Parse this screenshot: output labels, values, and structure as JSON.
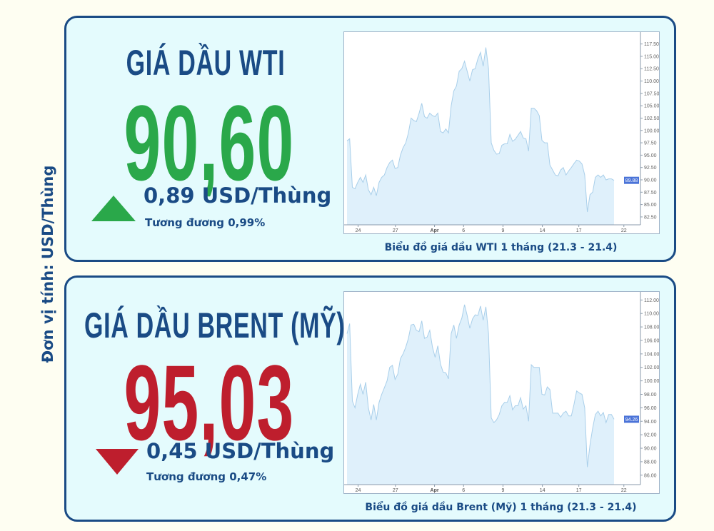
{
  "unit_label": "Đơn vị tính: USD/Thùng",
  "colors": {
    "navy": "#1a4b85",
    "up": "#2aa84a",
    "down": "#be1e2d",
    "panel_bg": "#e4fbfd",
    "page_bg": "#fefef2",
    "area_fill": "#dff0fb",
    "area_line": "#a9cfea",
    "last_badge": "#4a73d8"
  },
  "wti": {
    "title": "GIÁ DẦU WTI",
    "price": "90,60",
    "direction": "up",
    "direction_icon": "triangle-up-icon",
    "change": "0,89 USD/Thùng",
    "percent": "Tương đương 0,99%",
    "caption": "Biểu đồ giá dầu WTI 1 tháng (21.3 - 21.4)"
  },
  "brent": {
    "title": "GIÁ DẦU BRENT (MỸ)",
    "price": "95,03",
    "direction": "down",
    "direction_icon": "triangle-down-icon",
    "change": "0,45 USD/Thùng",
    "percent": "Tương đương 0,47%",
    "caption": "Biểu đồ giá dầu Brent (Mỹ) 1 tháng (21.3 - 21.4)"
  },
  "chart_data": [
    {
      "type": "area",
      "ylim": [
        80.9,
        119.9
      ],
      "y_ticks": [
        "82.50",
        "85.00",
        "87.50",
        "90.00",
        "92.50",
        "95.00",
        "97.50",
        "100.00",
        "102.50",
        "105.00",
        "107.50",
        "110.00",
        "112.50",
        "115.00",
        "117.50"
      ],
      "x_ticks": [
        "24",
        "27",
        "Apr",
        "6",
        "9",
        "14",
        "17",
        "22"
      ],
      "last_value_label": "89.88",
      "grid": false,
      "values": [
        97.9,
        98.3,
        88.5,
        88.2,
        89.5,
        90.5,
        89.5,
        91,
        88,
        87,
        88.5,
        86.8,
        89.5,
        90.5,
        91,
        92.5,
        93.5,
        94,
        92.3,
        92.5,
        95,
        96.5,
        97.5,
        99.5,
        102.5,
        102,
        101.8,
        103.5,
        105.5,
        102.8,
        102.5,
        103.5,
        103,
        102.8,
        103.5,
        99.8,
        99.5,
        100.3,
        99.5,
        105,
        108,
        109,
        112,
        112.5,
        114,
        112,
        110,
        112.3,
        112.5,
        114.5,
        115.8,
        113,
        116.8,
        112.5,
        97.5,
        96,
        95.2,
        95.3,
        97,
        97.3,
        97.3,
        99.2,
        97.8,
        98.2,
        99,
        99.8,
        98.5,
        98.3,
        95.8,
        104.5,
        104.5,
        104,
        103,
        98,
        97.5,
        97.5,
        93,
        92,
        91,
        90.8,
        92,
        92.5,
        91,
        91.8,
        92.5,
        93.3,
        94,
        93.8,
        93.2,
        91,
        83.5,
        87,
        87.5,
        90.5,
        91,
        90.5,
        91,
        90,
        90.2,
        90.2,
        89.9
      ]
    },
    {
      "type": "area",
      "ylim": [
        84.6,
        113.2
      ],
      "y_ticks": [
        "86.00",
        "88.00",
        "90.00",
        "92.00",
        "94.00",
        "96.00",
        "98.00",
        "100.00",
        "102.00",
        "104.00",
        "106.00",
        "108.00",
        "110.00",
        "112.00"
      ],
      "x_ticks": [
        "24",
        "27",
        "Apr",
        "6",
        "9",
        "14",
        "17",
        "22"
      ],
      "last_value_label": "94.26",
      "grid": false,
      "values": [
        107,
        108.5,
        97,
        96,
        98,
        99.5,
        98,
        99.8,
        96,
        94.2,
        96.5,
        94.2,
        96.8,
        98,
        99,
        100,
        102,
        102.3,
        100.2,
        101,
        103.3,
        104,
        105,
        106.3,
        108.3,
        108.4,
        107.5,
        107.3,
        108.9,
        106.3,
        106.5,
        107.5,
        105,
        103.5,
        105.2,
        102.5,
        101.3,
        101.2,
        100.3,
        107,
        108.3,
        106.3,
        108.3,
        109.3,
        111.3,
        109.7,
        107.8,
        109.2,
        109.8,
        109.7,
        111.1,
        109,
        111,
        107,
        94.5,
        93.8,
        94.2,
        95,
        96.3,
        96.8,
        96.8,
        97.8,
        95.7,
        96.3,
        96.3,
        97.5,
        95.8,
        96.3,
        94,
        102.4,
        102,
        102,
        102,
        98,
        97.9,
        99.1,
        98.7,
        95.2,
        95.2,
        95.2,
        94.6,
        95.2,
        95.5,
        94.8,
        94.8,
        96.5,
        98.5,
        98.2,
        98,
        96,
        87.2,
        90.5,
        93,
        95,
        95.5,
        94.8,
        95.3,
        93.8,
        95,
        95,
        94.3
      ]
    }
  ]
}
